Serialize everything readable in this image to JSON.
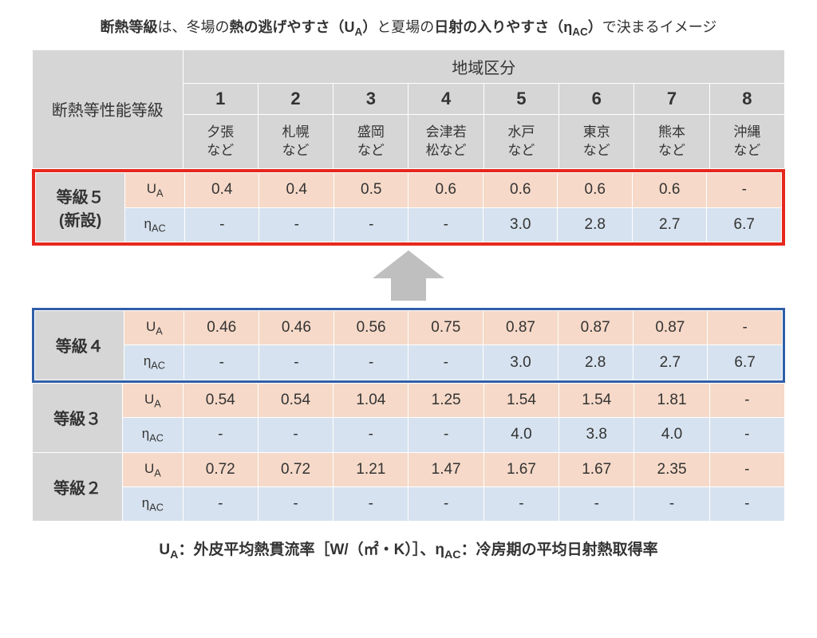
{
  "title": {
    "t1": "断熱等級",
    "t2": "は、冬場の",
    "t3": "熱の逃げやすさ（U",
    "t3sub": "A",
    "t3b": "）",
    "t4": "と夏場の",
    "t5": "日射の入りやすさ（η",
    "t5sub": "AC",
    "t5b": "）",
    "t6": "で決まるイメージ"
  },
  "header": {
    "row_label": "断熱等性能等級",
    "region_label": "地域区分",
    "zones": [
      {
        "num": "1",
        "city": "夕張\nなど"
      },
      {
        "num": "2",
        "city": "札幌\nなど"
      },
      {
        "num": "3",
        "city": "盛岡\nなど"
      },
      {
        "num": "4",
        "city": "会津若\n松など"
      },
      {
        "num": "5",
        "city": "水戸\nなど"
      },
      {
        "num": "6",
        "city": "東京\nなど"
      },
      {
        "num": "7",
        "city": "熊本\nなど"
      },
      {
        "num": "8",
        "city": "沖縄\nなど"
      }
    ]
  },
  "metrics": {
    "ua": "U",
    "ua_sub": "A",
    "eta": "η",
    "eta_sub": "AC"
  },
  "grades": {
    "g5": {
      "label_l1": "等級５",
      "label_l2": "(新設)",
      "ua": [
        "0.4",
        "0.4",
        "0.5",
        "0.6",
        "0.6",
        "0.6",
        "0.6",
        "-"
      ],
      "eta": [
        "-",
        "-",
        "-",
        "-",
        "3.0",
        "2.8",
        "2.7",
        "6.7"
      ]
    },
    "g4": {
      "label": "等級４",
      "ua": [
        "0.46",
        "0.46",
        "0.56",
        "0.75",
        "0.87",
        "0.87",
        "0.87",
        "-"
      ],
      "eta": [
        "-",
        "-",
        "-",
        "-",
        "3.0",
        "2.8",
        "2.7",
        "6.7"
      ]
    },
    "g3": {
      "label": "等級３",
      "ua": [
        "0.54",
        "0.54",
        "1.04",
        "1.25",
        "1.54",
        "1.54",
        "1.81",
        "-"
      ],
      "eta": [
        "-",
        "-",
        "-",
        "-",
        "4.0",
        "3.8",
        "4.0",
        "-"
      ]
    },
    "g2": {
      "label": "等級２",
      "ua": [
        "0.72",
        "0.72",
        "1.21",
        "1.47",
        "1.67",
        "1.67",
        "2.35",
        "-"
      ],
      "eta": [
        "-",
        "-",
        "-",
        "-",
        "-",
        "-",
        "-",
        "-"
      ]
    }
  },
  "footer": {
    "p1": "U",
    "p1s": "A",
    "p2": "：外皮平均熱貫流率［W/（㎡・K）］、",
    "p3": "η",
    "p3s": "AC",
    "p4": "：冷房期の平均日射熱取得率"
  },
  "colors": {
    "header_bg": "#d6d6d6",
    "ua_bg": "#f6d9c8",
    "eta_bg": "#d6e2ef",
    "border_red": "#e6281e",
    "border_blue": "#2f5ea8",
    "arrow": "#bfbfbf",
    "text": "#333333"
  }
}
